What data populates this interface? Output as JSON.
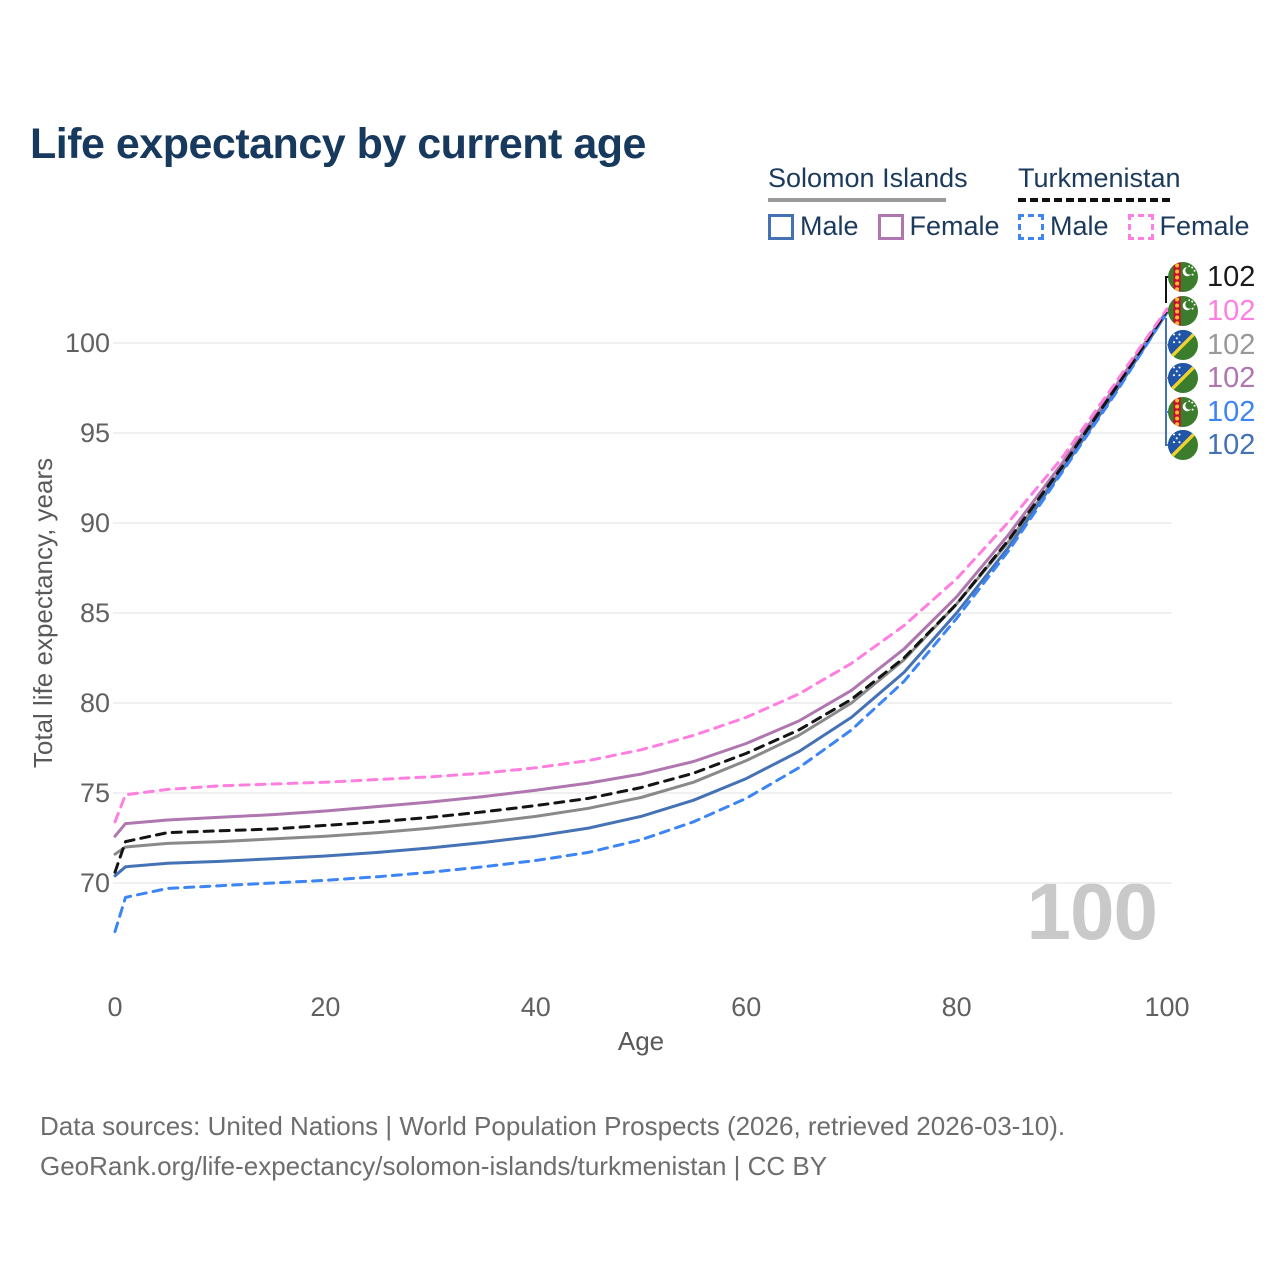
{
  "title": "Life expectancy by current age",
  "legend": {
    "groups": [
      {
        "name": "Solomon Islands",
        "line_style": "solid",
        "underline_color": "#9a9a9a",
        "items": [
          {
            "label": "Male",
            "color": "#4472b4",
            "dashed": false
          },
          {
            "label": "Female",
            "color": "#b076b0",
            "dashed": false
          }
        ]
      },
      {
        "name": "Turkmenistan",
        "line_style": "dashed",
        "underline_color": "#111111",
        "items": [
          {
            "label": "Male",
            "color": "#3d85f4",
            "dashed": true
          },
          {
            "label": "Female",
            "color": "#ff7fe1",
            "dashed": true
          }
        ]
      }
    ]
  },
  "chart_data": {
    "type": "line",
    "title": "Life expectancy by current age",
    "xlabel": "Age",
    "ylabel": "Total life expectancy, years",
    "xlim": [
      0,
      100
    ],
    "ylim": [
      66,
      103
    ],
    "x_ticks": [
      0,
      20,
      40,
      60,
      80,
      100
    ],
    "y_ticks": [
      70,
      75,
      80,
      85,
      90,
      95,
      100
    ],
    "grid": true,
    "legend_position": "top-right",
    "watermark": "100",
    "x": [
      0,
      1,
      5,
      10,
      15,
      20,
      25,
      30,
      35,
      40,
      45,
      50,
      55,
      60,
      65,
      70,
      75,
      80,
      85,
      90,
      95,
      100
    ],
    "series": [
      {
        "name": "Solomon Islands",
        "color": "#8a8a8a",
        "dashed": false,
        "values": [
          71.6,
          72.0,
          72.2,
          72.3,
          72.45,
          72.6,
          72.8,
          73.05,
          73.35,
          73.7,
          74.15,
          74.75,
          75.6,
          76.8,
          78.2,
          80.0,
          82.4,
          85.5,
          89.0,
          93.0,
          97.4,
          101.8
        ]
      },
      {
        "name": "Solomon Islands Male",
        "color": "#4472b4",
        "dashed": false,
        "values": [
          70.4,
          70.9,
          71.1,
          71.2,
          71.35,
          71.5,
          71.7,
          71.95,
          72.25,
          72.6,
          73.05,
          73.7,
          74.6,
          75.8,
          77.3,
          79.2,
          81.7,
          85.0,
          88.7,
          92.9,
          97.2,
          101.7
        ]
      },
      {
        "name": "Solomon Islands Female",
        "color": "#b076b0",
        "dashed": false,
        "values": [
          72.6,
          73.3,
          73.5,
          73.65,
          73.8,
          74.0,
          74.25,
          74.5,
          74.8,
          75.15,
          75.55,
          76.05,
          76.75,
          77.75,
          79.0,
          80.7,
          83.0,
          85.9,
          89.4,
          93.3,
          97.5,
          101.8
        ]
      },
      {
        "name": "Turkmenistan Male",
        "color": "#3d85f4",
        "dashed": true,
        "values": [
          67.3,
          69.2,
          69.7,
          69.85,
          70.0,
          70.15,
          70.35,
          70.6,
          70.9,
          71.25,
          71.7,
          72.4,
          73.4,
          74.7,
          76.4,
          78.5,
          81.2,
          84.7,
          88.5,
          92.8,
          97.1,
          101.7
        ]
      },
      {
        "name": "Turkmenistan",
        "color": "#141414",
        "dashed": true,
        "values": [
          70.6,
          72.3,
          72.8,
          72.9,
          73.0,
          73.2,
          73.4,
          73.65,
          73.95,
          74.3,
          74.7,
          75.3,
          76.1,
          77.2,
          78.5,
          80.2,
          82.5,
          85.5,
          89.1,
          93.1,
          97.4,
          101.8
        ]
      },
      {
        "name": "Turkmenistan Female",
        "color": "#ff7fe1",
        "dashed": true,
        "values": [
          73.4,
          74.9,
          75.2,
          75.4,
          75.5,
          75.6,
          75.75,
          75.9,
          76.1,
          76.4,
          76.8,
          77.4,
          78.2,
          79.2,
          80.5,
          82.2,
          84.3,
          86.9,
          90.1,
          93.6,
          97.7,
          101.9
        ]
      }
    ]
  },
  "end_labels": [
    {
      "value": "102",
      "flag": "turkmenistan",
      "color": "#1a1a1a",
      "series": "Turkmenistan"
    },
    {
      "value": "102",
      "flag": "turkmenistan",
      "color": "#ff7fe1",
      "series": "Turkmenistan Female"
    },
    {
      "value": "102",
      "flag": "solomon-islands",
      "color": "#999999",
      "series": "Solomon Islands"
    },
    {
      "value": "102",
      "flag": "solomon-islands",
      "color": "#b076b0",
      "series": "Solomon Islands Female"
    },
    {
      "value": "102",
      "flag": "turkmenistan",
      "color": "#3d85f4",
      "series": "Turkmenistan Male"
    },
    {
      "value": "102",
      "flag": "solomon-islands",
      "color": "#4472b4",
      "series": "Solomon Islands Male"
    }
  ],
  "footer": {
    "line1": "Data sources: United Nations | World Population Prospects (2026, retrieved 2026-03-10).",
    "line2": "GeoRank.org/life-expectancy/solomon-islands/turkmenistan | CC BY"
  }
}
